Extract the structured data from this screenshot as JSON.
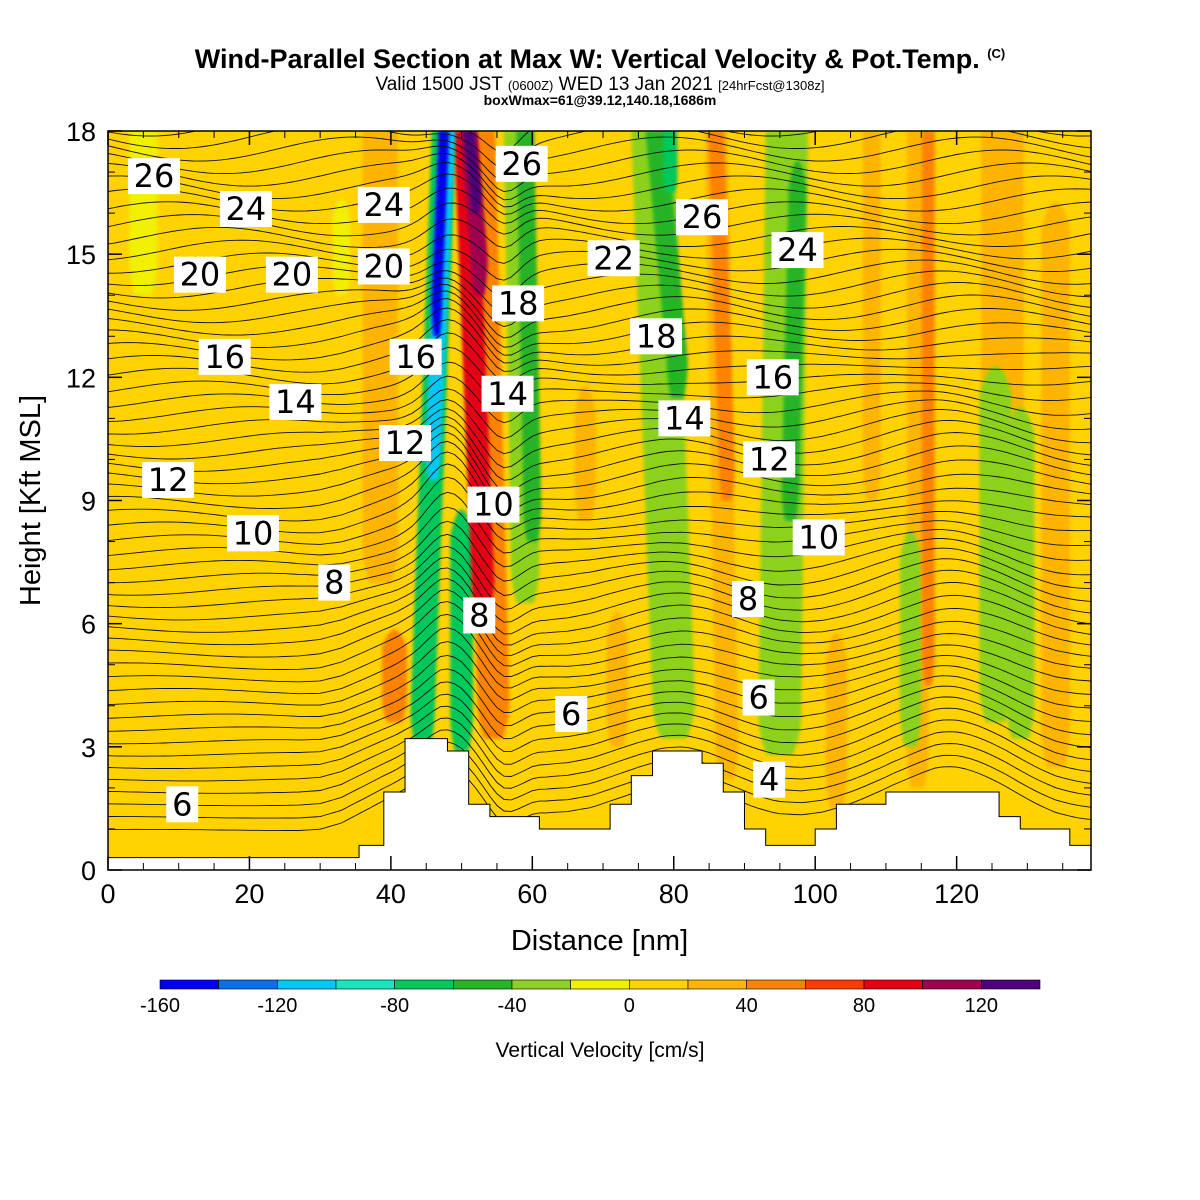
{
  "title": {
    "main": "Wind-Parallel Section at Max W: Vertical Velocity & Pot.Temp.",
    "copyright": "(C)",
    "valid_prefix": "Valid 1500 JST",
    "valid_utc": "(0600Z)",
    "valid_date": "WED 13 Jan 2021",
    "forecast": "[24hrFcst@1308z]",
    "boxinfo": "boxWmax=61@39.12,140.18,1686m"
  },
  "chart_data": {
    "type": "heatmap",
    "title": "Wind-Parallel Section at Max W: Vertical Velocity & Pot.Temp.",
    "xlabel": "Distance [nm]",
    "ylabel": "Height [Kft MSL]",
    "xlim": [
      0,
      139
    ],
    "ylim": [
      0,
      18
    ],
    "x_ticks": [
      "0",
      "20",
      "40",
      "60",
      "80",
      "100",
      "120"
    ],
    "y_ticks": [
      "0",
      "3",
      "6",
      "9",
      "12",
      "15",
      "18"
    ],
    "colorbar": {
      "label": "Vertical Velocity [cm/s]",
      "tick_labels": [
        "-160",
        "-120",
        "-80",
        "-40",
        "0",
        "40",
        "80",
        "120"
      ],
      "bin_edges": [
        -160,
        -140,
        -120,
        -100,
        -80,
        -60,
        -40,
        -20,
        0,
        20,
        40,
        60,
        80,
        100,
        120,
        140
      ],
      "colors": [
        "#0000ee",
        "#0a6ef0",
        "#00c8f5",
        "#19e6be",
        "#00c85a",
        "#28b428",
        "#8cd21e",
        "#f0f000",
        "#ffd200",
        "#ffb400",
        "#ff8200",
        "#ff3c00",
        "#e60014",
        "#a00050",
        "#50007d"
      ]
    },
    "terrain_kft": [
      [
        0,
        0.3
      ],
      [
        35.5,
        0.3
      ],
      [
        35.5,
        0.6
      ],
      [
        39,
        0.6
      ],
      [
        39,
        1.9
      ],
      [
        42,
        1.9
      ],
      [
        42,
        3.2
      ],
      [
        48,
        3.2
      ],
      [
        48,
        2.9
      ],
      [
        51,
        2.9
      ],
      [
        51,
        1.6
      ],
      [
        54,
        1.6
      ],
      [
        54,
        1.3
      ],
      [
        61,
        1.3
      ],
      [
        61,
        1.0
      ],
      [
        71,
        1.0
      ],
      [
        71,
        1.6
      ],
      [
        74,
        1.6
      ],
      [
        74,
        2.3
      ],
      [
        77,
        2.3
      ],
      [
        77,
        2.9
      ],
      [
        84,
        2.9
      ],
      [
        84,
        2.6
      ],
      [
        87,
        2.6
      ],
      [
        87,
        1.9
      ],
      [
        90,
        1.9
      ],
      [
        90,
        1.0
      ],
      [
        93,
        1.0
      ],
      [
        93,
        0.6
      ],
      [
        100,
        0.6
      ],
      [
        100,
        1.0
      ],
      [
        103,
        1.0
      ],
      [
        103,
        1.6
      ],
      [
        110,
        1.6
      ],
      [
        110,
        1.9
      ],
      [
        126,
        1.9
      ],
      [
        126,
        1.3
      ],
      [
        129,
        1.3
      ],
      [
        129,
        1.0
      ],
      [
        136,
        1.0
      ],
      [
        136,
        0.6
      ],
      [
        139,
        0.6
      ]
    ],
    "w_bands": [
      {
        "x": 40.5,
        "y0": 3.6,
        "y1": 6.0,
        "width": 3.5,
        "value": 55
      },
      {
        "x": 38.5,
        "y0": 7.0,
        "y1": 18.0,
        "width": 5,
        "value": 25
      },
      {
        "x": 44.5,
        "y0": 3.0,
        "y1": 18.0,
        "width": 3.4,
        "lean": 3,
        "value": -65
      },
      {
        "x": 46.0,
        "y0": 9.5,
        "y1": 18.0,
        "width": 2.2,
        "lean": 2,
        "value": -105
      },
      {
        "x": 46.5,
        "y0": 13.0,
        "y1": 18.0,
        "width": 1.5,
        "lean": 1,
        "value": -150
      },
      {
        "x": 50.0,
        "y0": 2.9,
        "y1": 9.0,
        "width": 3.2,
        "value": -70
      },
      {
        "x": 54.5,
        "y0": 3.2,
        "y1": 18.0,
        "width": 4.5,
        "lean": -2,
        "value": 55
      },
      {
        "x": 53.0,
        "y0": 6.2,
        "y1": 18.0,
        "width": 3.2,
        "lean": -2.5,
        "value": 85
      },
      {
        "x": 52.5,
        "y0": 14.0,
        "y1": 18.0,
        "width": 2.4,
        "lean": -1.5,
        "value": 115
      },
      {
        "x": 52.0,
        "y0": 16.0,
        "y1": 18.0,
        "width": 1.5,
        "lean": -1,
        "value": 130
      },
      {
        "x": 59.0,
        "y0": 6.5,
        "y1": 18.0,
        "width": 4,
        "lean": -1,
        "value": -30
      },
      {
        "x": 60.0,
        "y0": 8.0,
        "y1": 18.0,
        "width": 2.5,
        "lean": -1,
        "value": -45
      },
      {
        "x": 67.5,
        "y0": 8.5,
        "y1": 12.0,
        "width": 3,
        "value": 20
      },
      {
        "x": 72.0,
        "y0": 3.0,
        "y1": 6.5,
        "width": 3,
        "value": 25
      },
      {
        "x": 80.0,
        "y0": 3.2,
        "y1": 18.0,
        "width": 6,
        "lean": -3,
        "value": -30
      },
      {
        "x": 80.5,
        "y0": 11.5,
        "y1": 18.0,
        "width": 3,
        "lean": -3,
        "value": -50
      },
      {
        "x": 79.5,
        "y0": 16.5,
        "y1": 18.0,
        "width": 2,
        "value": -70
      },
      {
        "x": 87.5,
        "y0": 2.2,
        "y1": 18.0,
        "width": 3.2,
        "lean": -1.5,
        "value": 30
      },
      {
        "x": 87.5,
        "y0": 9.0,
        "y1": 18.0,
        "width": 2.2,
        "lean": -1.5,
        "value": 50
      },
      {
        "x": 95.0,
        "y0": 2.8,
        "y1": 18.0,
        "width": 6,
        "lean": 1,
        "value": -30
      },
      {
        "x": 96.5,
        "y0": 8.5,
        "y1": 17.5,
        "width": 2.5,
        "lean": 1,
        "value": -45
      },
      {
        "x": 103.0,
        "y0": 1.5,
        "y1": 6.0,
        "width": 3,
        "value": 25
      },
      {
        "x": 108.0,
        "y0": 9.0,
        "y1": 18.0,
        "width": 2.5,
        "value": 20
      },
      {
        "x": 114.5,
        "y0": 2.0,
        "y1": 18.0,
        "width": 3,
        "value": 25
      },
      {
        "x": 116.0,
        "y0": 4.5,
        "y1": 18.0,
        "width": 1.8,
        "value": 45
      },
      {
        "x": 125.5,
        "y0": 3.6,
        "y1": 12.5,
        "width": 4.5,
        "value": -25
      },
      {
        "x": 129.0,
        "y0": 3.2,
        "y1": 11.5,
        "width": 4,
        "value": -25
      },
      {
        "x": 126.5,
        "y0": 4.5,
        "y1": 18.0,
        "width": 6,
        "value": 20
      },
      {
        "x": 134.0,
        "y0": 2.5,
        "y1": 16.5,
        "width": 4,
        "value": 20
      },
      {
        "x": 113.5,
        "y0": 3.0,
        "y1": 8.5,
        "width": 3,
        "value": -25
      },
      {
        "x": 5.0,
        "y0": 14.0,
        "y1": 18.0,
        "width": 4,
        "value": -5
      },
      {
        "x": 33.0,
        "y0": 14.0,
        "y1": 16.5,
        "width": 2.5,
        "value": -5
      }
    ],
    "theta_levels": [
      4,
      6,
      8,
      10,
      12,
      14,
      16,
      18,
      20,
      22,
      24,
      26
    ],
    "theta_labels": [
      {
        "text": "26",
        "x": 6.5,
        "y": 16.9,
        "angle": 0
      },
      {
        "text": "24",
        "x": 19.5,
        "y": 16.1,
        "angle": 0
      },
      {
        "text": "24",
        "x": 39.0,
        "y": 16.2,
        "angle": 0
      },
      {
        "text": "26",
        "x": 58.5,
        "y": 17.2,
        "angle": 0
      },
      {
        "text": "26",
        "x": 84.0,
        "y": 15.9,
        "angle": 0
      },
      {
        "text": "24",
        "x": 97.5,
        "y": 15.1,
        "angle": 0
      },
      {
        "text": "20",
        "x": 13.0,
        "y": 14.5,
        "angle": 0
      },
      {
        "text": "20",
        "x": 26.0,
        "y": 14.5,
        "angle": 0
      },
      {
        "text": "20",
        "x": 39.0,
        "y": 14.7,
        "angle": 0
      },
      {
        "text": "22",
        "x": 71.5,
        "y": 14.9,
        "angle": 0
      },
      {
        "text": "18",
        "x": 58.0,
        "y": 13.8,
        "angle": 0
      },
      {
        "text": "18",
        "x": 77.5,
        "y": 13.0,
        "angle": 0
      },
      {
        "text": "16",
        "x": 16.5,
        "y": 12.5,
        "angle": 0
      },
      {
        "text": "16",
        "x": 43.5,
        "y": 12.5,
        "angle": 0
      },
      {
        "text": "16",
        "x": 94.0,
        "y": 12.0,
        "angle": 0
      },
      {
        "text": "14",
        "x": 26.5,
        "y": 11.4,
        "angle": 0
      },
      {
        "text": "14",
        "x": 56.5,
        "y": 11.6,
        "angle": 0
      },
      {
        "text": "14",
        "x": 81.5,
        "y": 11.0,
        "angle": 0
      },
      {
        "text": "12",
        "x": 42.0,
        "y": 10.4,
        "angle": 0
      },
      {
        "text": "12",
        "x": 93.5,
        "y": 10.0,
        "angle": 0
      },
      {
        "text": "12",
        "x": 8.5,
        "y": 9.5,
        "angle": 0
      },
      {
        "text": "10",
        "x": 54.5,
        "y": 8.9,
        "angle": 0
      },
      {
        "text": "10",
        "x": 20.5,
        "y": 8.2,
        "angle": 0
      },
      {
        "text": "10",
        "x": 100.5,
        "y": 8.1,
        "angle": 0
      },
      {
        "text": "8",
        "x": 32.0,
        "y": 7.0,
        "angle": 0
      },
      {
        "text": "8",
        "x": 90.5,
        "y": 6.6,
        "angle": 0
      },
      {
        "text": "8",
        "x": 52.5,
        "y": 6.2,
        "angle": 0
      },
      {
        "text": "6",
        "x": 92.0,
        "y": 4.2,
        "angle": 0
      },
      {
        "text": "6",
        "x": 65.5,
        "y": 3.8,
        "angle": 0
      },
      {
        "text": "4",
        "x": 93.5,
        "y": 2.2,
        "angle": 0
      },
      {
        "text": "6",
        "x": 10.5,
        "y": 1.6,
        "angle": 0
      }
    ]
  }
}
